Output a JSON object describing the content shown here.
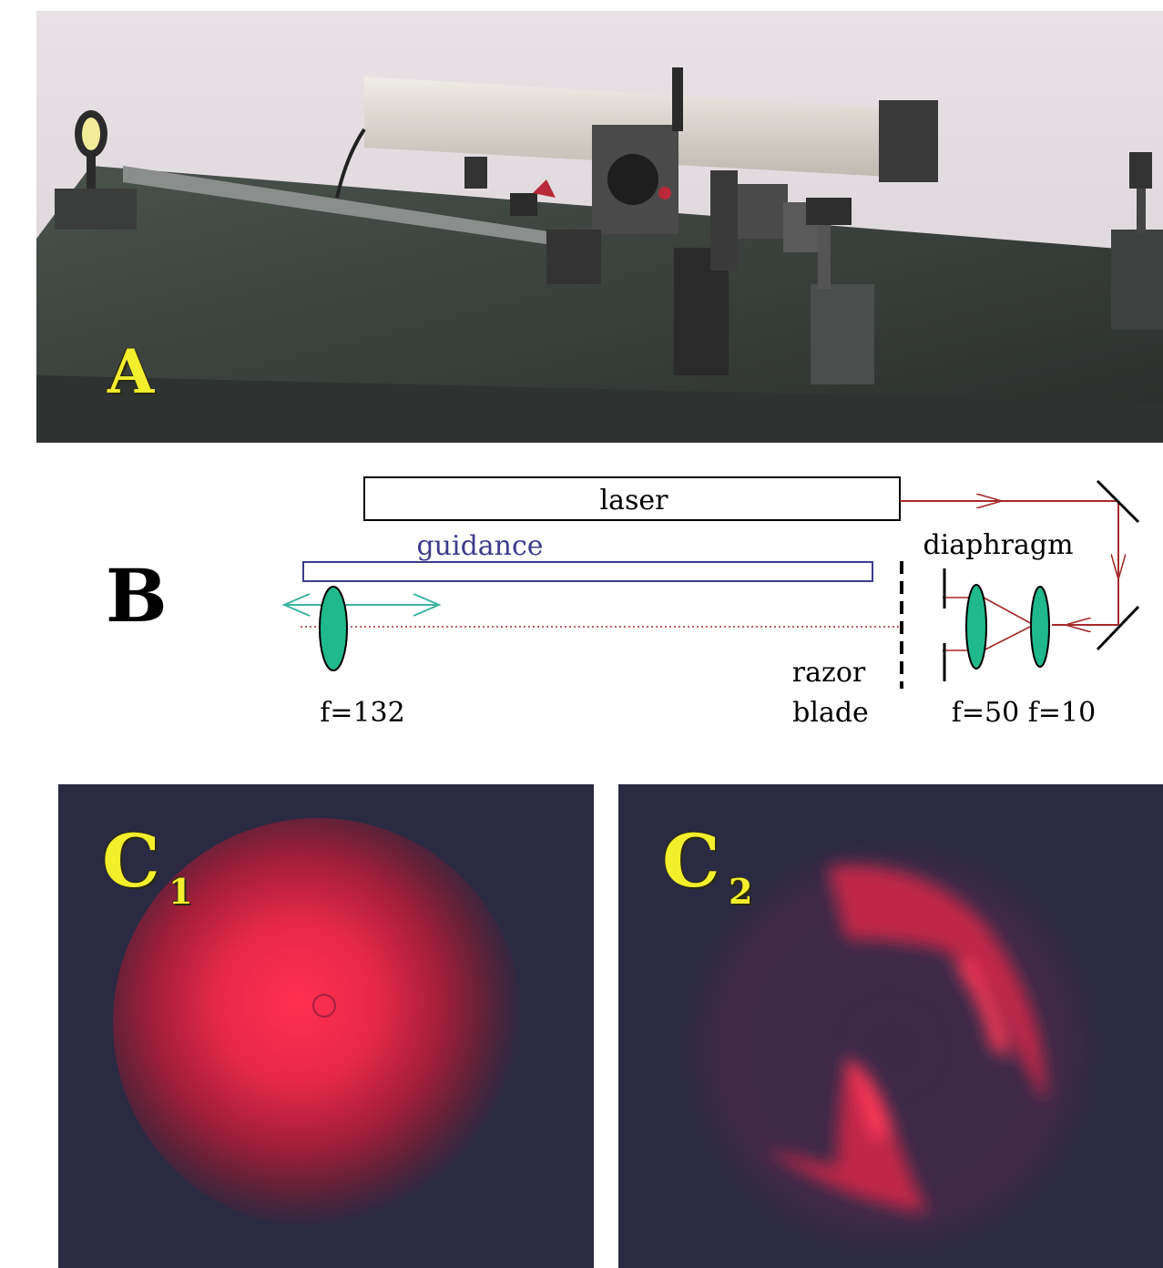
{
  "panels": {
    "a": {
      "letter": "A"
    },
    "b": {
      "letter": "B",
      "labels": {
        "laser": "laser",
        "guidance": "guidance",
        "diaphragm": "diaphragm",
        "razor": "razor",
        "blade": "blade",
        "f132": "f=132",
        "f50": "f=50",
        "f10": "f=10"
      }
    },
    "c1": {
      "letter": "C",
      "subscript": "1"
    },
    "c2": {
      "letter": "C",
      "subscript": "2"
    }
  },
  "colors": {
    "label_yellow": "#f4ef2c",
    "beam_red": "#a52a2a",
    "lens_green": "#1fb98c",
    "guidance_blue": "#3c3c8c",
    "arrow_cyan": "#3cb4a0",
    "dark_background": "#2a2a42",
    "spot_red": "#ff3050"
  }
}
